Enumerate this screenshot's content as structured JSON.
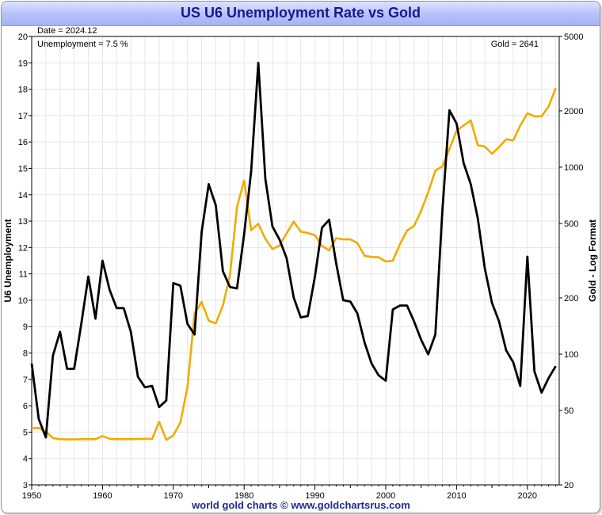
{
  "title": "US U6 Unemployment Rate vs Gold",
  "footer": "world gold charts © www.goldchartsrus.com",
  "annotations": {
    "date": "Date = 2024.12",
    "unemployment": "Unemployment = 7.5 %",
    "gold": "Gold = 2641"
  },
  "colors": {
    "unemployment": "#000000",
    "gold": "#f0ac00",
    "grid": "#e6e6e6",
    "title": "#151a8c"
  },
  "chart_data": {
    "type": "line",
    "title": "US U6 Unemployment Rate vs Gold",
    "xlabel": "",
    "ylabel": "U6 Unemployment",
    "y2label": "Gold - Log Format",
    "xlim": [
      1950,
      2024.5
    ],
    "ylim": [
      3,
      20
    ],
    "y2lim": [
      20,
      5000
    ],
    "y2_scale": "log",
    "grid": true,
    "legend": "none",
    "x_ticks": [
      1950,
      1960,
      1970,
      1980,
      1990,
      2000,
      2010,
      2020
    ],
    "y_ticks": [
      3,
      4,
      5,
      6,
      7,
      8,
      9,
      10,
      11,
      12,
      13,
      14,
      15,
      16,
      17,
      18,
      19,
      20
    ],
    "y2_ticks": [
      20,
      50,
      100,
      200,
      500,
      1000,
      2000,
      5000
    ],
    "series": [
      {
        "axis": "left",
        "color": "#000000",
        "x": [
          1950,
          1951,
          1952,
          1953,
          1954,
          1955,
          1956,
          1957,
          1958,
          1959,
          1960,
          1961,
          1962,
          1963,
          1964,
          1965,
          1966,
          1967,
          1968,
          1969,
          1970,
          1971,
          1972,
          1973,
          1974,
          1975,
          1976,
          1977,
          1978,
          1979,
          1980,
          1981,
          1982,
          1983,
          1984,
          1985,
          1986,
          1987,
          1988,
          1989,
          1990,
          1991,
          1992,
          1993,
          1994,
          1995,
          1996,
          1997,
          1998,
          1999,
          2000,
          2001,
          2002,
          2003,
          2004,
          2005,
          2006,
          2007,
          2008,
          2009,
          2010,
          2011,
          2012,
          2013,
          2014,
          2015,
          2016,
          2017,
          2018,
          2019,
          2020,
          2021,
          2022,
          2023,
          2024
        ],
        "values": [
          7.6,
          5.5,
          4.8,
          7.9,
          8.8,
          7.4,
          7.4,
          9.1,
          10.9,
          9.3,
          11.5,
          10.4,
          9.7,
          9.7,
          8.8,
          7.1,
          6.7,
          6.75,
          5.95,
          6.2,
          10.65,
          10.55,
          9.1,
          8.7,
          12.6,
          14.4,
          13.6,
          11.1,
          10.5,
          10.45,
          12.5,
          14.9,
          19.0,
          14.6,
          12.8,
          12.3,
          11.6,
          10.1,
          9.35,
          9.4,
          10.9,
          12.75,
          13.05,
          11.4,
          10.0,
          9.95,
          9.5,
          8.4,
          7.6,
          7.15,
          6.95,
          9.65,
          9.8,
          9.8,
          9.2,
          8.5,
          7.95,
          8.7,
          13.4,
          17.2,
          16.7,
          15.2,
          14.4,
          13.1,
          11.2,
          9.9,
          9.2,
          8.1,
          7.65,
          6.75,
          11.65,
          7.3,
          6.5,
          7.05,
          7.5
        ]
      },
      {
        "axis": "right",
        "color": "#f0ac00",
        "x": [
          1950,
          1951,
          1952,
          1953,
          1954,
          1955,
          1956,
          1957,
          1958,
          1959,
          1960,
          1961,
          1962,
          1963,
          1964,
          1965,
          1966,
          1967,
          1968,
          1969,
          1970,
          1971,
          1972,
          1973,
          1974,
          1975,
          1976,
          1977,
          1978,
          1979,
          1980,
          1981,
          1982,
          1983,
          1984,
          1985,
          1986,
          1987,
          1988,
          1989,
          1990,
          1991,
          1992,
          1993,
          1994,
          1995,
          1996,
          1997,
          1998,
          1999,
          2000,
          2001,
          2002,
          2003,
          2004,
          2005,
          2006,
          2007,
          2008,
          2009,
          2010,
          2011,
          2012,
          2013,
          2014,
          2015,
          2016,
          2017,
          2018,
          2019,
          2020,
          2021,
          2022,
          2023,
          2024
        ],
        "values": [
          40.3,
          40.3,
          38.5,
          35.6,
          35.1,
          35.0,
          35.0,
          35.1,
          35.1,
          35.1,
          36.5,
          35.3,
          35.1,
          35.1,
          35.1,
          35.2,
          35.3,
          35.2,
          43.5,
          34.8,
          36.8,
          43.1,
          66.9,
          165,
          190,
          151,
          146,
          182,
          264,
          613,
          848,
          460,
          498,
          414,
          365,
          381,
          443,
          511,
          452,
          445,
          433,
          379,
          359,
          417,
          411,
          411,
          393,
          336,
          331,
          330,
          313,
          316,
          387,
          458,
          485,
          585,
          734,
          957,
          1010,
          1250,
          1570,
          1670,
          1780,
          1310,
          1290,
          1180,
          1280,
          1410,
          1390,
          1670,
          1940,
          1870,
          1870,
          2110,
          2641
        ]
      }
    ]
  }
}
